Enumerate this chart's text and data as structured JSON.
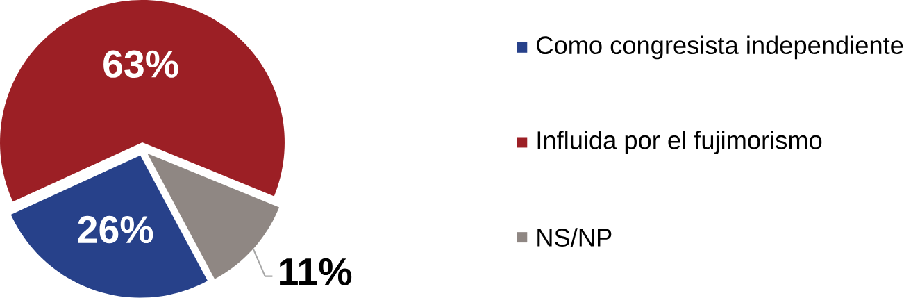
{
  "chart_data": {
    "type": "pie",
    "categories": [
      "Como congresista independiente",
      "Influida por el fujimorismo",
      "NS/NP"
    ],
    "values": [
      26,
      63,
      11
    ],
    "value_labels": [
      "26%",
      "63%",
      "11%"
    ],
    "colors": [
      "#27418a",
      "#9c1f25",
      "#8f8783"
    ],
    "legend": "right"
  }
}
